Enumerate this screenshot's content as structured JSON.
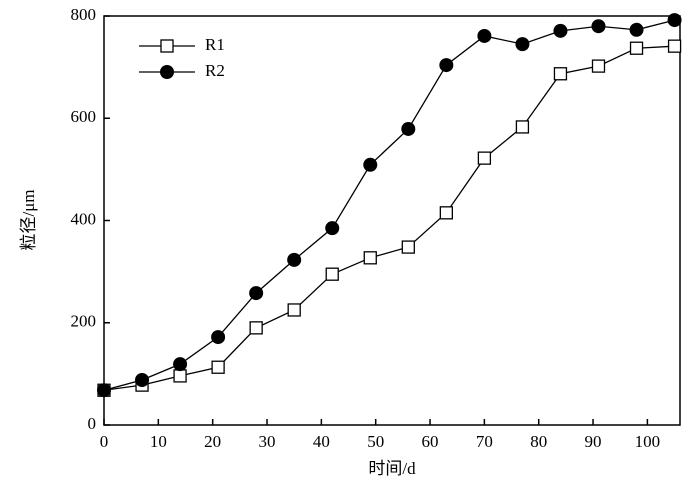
{
  "chart_data": {
    "type": "line",
    "xlabel": "时间/d",
    "ylabel": "粒径/μm",
    "x": [
      0,
      7,
      14,
      21,
      28,
      35,
      42,
      49,
      56,
      63,
      70,
      77,
      84,
      91,
      98,
      105
    ],
    "series": [
      {
        "name": "R1",
        "color": "#000000",
        "marker": "square-open",
        "values": [
          68,
          78,
          96,
          113,
          190,
          225,
          295,
          327,
          348,
          415,
          522,
          583,
          687,
          702,
          737,
          741
        ]
      },
      {
        "name": "R2",
        "color": "#000000",
        "marker": "circle-filled",
        "values": [
          68,
          88,
          119,
          172,
          258,
          323,
          385,
          509,
          579,
          704,
          761,
          745,
          771,
          780,
          773,
          792
        ]
      }
    ],
    "xlim": [
      0,
      106
    ],
    "xticks": [
      0,
      10,
      20,
      30,
      40,
      50,
      60,
      70,
      80,
      90,
      100
    ],
    "ylim": [
      0,
      800
    ],
    "yticks": [
      0,
      200,
      400,
      600,
      800
    ],
    "legend": "upper-left"
  }
}
